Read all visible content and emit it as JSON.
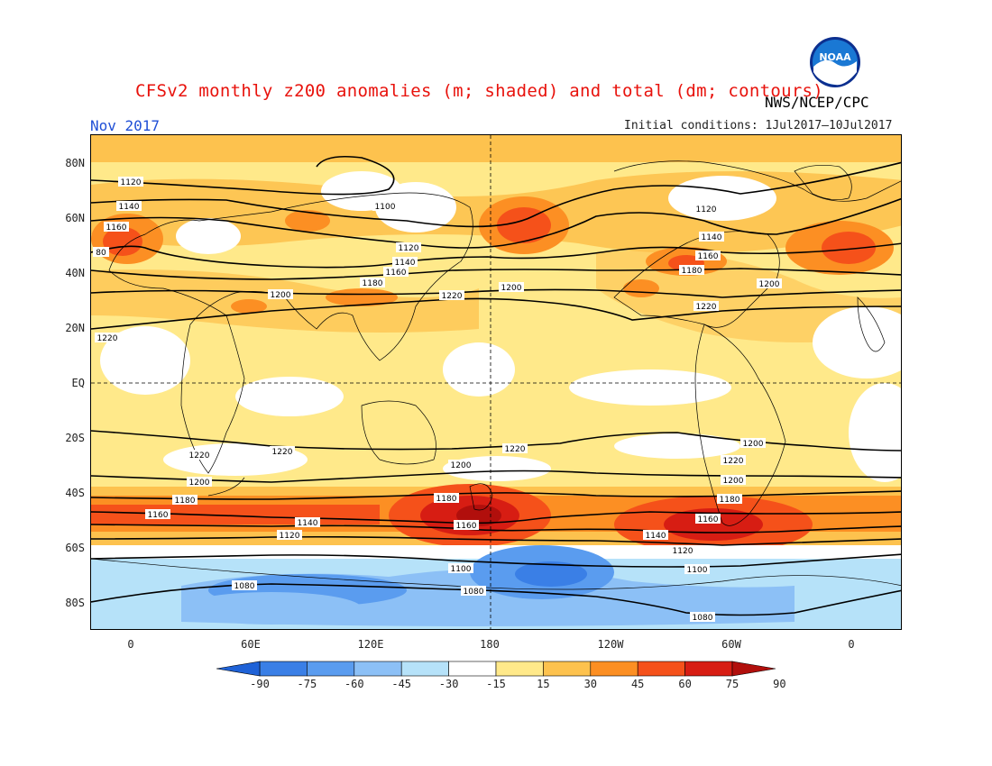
{
  "header": {
    "title": "CFSv2 monthly z200 anomalies (m; shaded) and total (dm; contours)",
    "agency": "NWS/NCEP/CPC",
    "logo_text": "NOAA",
    "period": "Nov 2017",
    "initial_conditions": "Initial conditions: 1Jul2017–10Jul2017"
  },
  "axes": {
    "lat_ticks": [
      "80N",
      "60N",
      "40N",
      "20N",
      "EQ",
      "20S",
      "40S",
      "60S",
      "80S"
    ],
    "lon_ticks": [
      "0",
      "60E",
      "120E",
      "180",
      "120W",
      "60W",
      "0"
    ]
  },
  "colorbar": {
    "labels": [
      "-90",
      "-75",
      "-60",
      "-45",
      "-30",
      "-15",
      "15",
      "30",
      "45",
      "60",
      "75",
      "90"
    ],
    "colors": [
      "#1f62d7",
      "#3a7fe6",
      "#5a9cef",
      "#8cc0f6",
      "#b6e2f9",
      "#ffffff",
      "#ffe98a",
      "#fdc24e",
      "#fc8f23",
      "#f5511a",
      "#d71d13",
      "#b10f0c"
    ]
  },
  "map_data": {
    "contour_labels": [
      {
        "text": "1120"
      },
      {
        "text": "1140"
      },
      {
        "text": "1160"
      },
      {
        "text": "80"
      },
      {
        "text": "1100"
      },
      {
        "text": "1120"
      },
      {
        "text": "1140"
      },
      {
        "text": "1160"
      },
      {
        "text": "1180"
      },
      {
        "text": "1200"
      },
      {
        "text": "1220"
      },
      {
        "text": "1200"
      },
      {
        "text": "1220"
      },
      {
        "text": "1120"
      },
      {
        "text": "1140"
      },
      {
        "text": "1160"
      },
      {
        "text": "1180"
      },
      {
        "text": "1200"
      },
      {
        "text": "1220"
      },
      {
        "text": "1200"
      },
      {
        "text": "1220"
      },
      {
        "text": "1220"
      },
      {
        "text": "1200"
      },
      {
        "text": "1180"
      },
      {
        "text": "1160"
      },
      {
        "text": "1140"
      },
      {
        "text": "1120"
      },
      {
        "text": "1220"
      },
      {
        "text": "1200"
      },
      {
        "text": "1180"
      },
      {
        "text": "1160"
      },
      {
        "text": "1220"
      },
      {
        "text": "1200"
      },
      {
        "text": "1180"
      },
      {
        "text": "1160"
      },
      {
        "text": "1140"
      },
      {
        "text": "1120"
      },
      {
        "text": "1100"
      },
      {
        "text": "1080"
      },
      {
        "text": "1100"
      },
      {
        "text": "1080"
      },
      {
        "text": "1080"
      }
    ]
  }
}
